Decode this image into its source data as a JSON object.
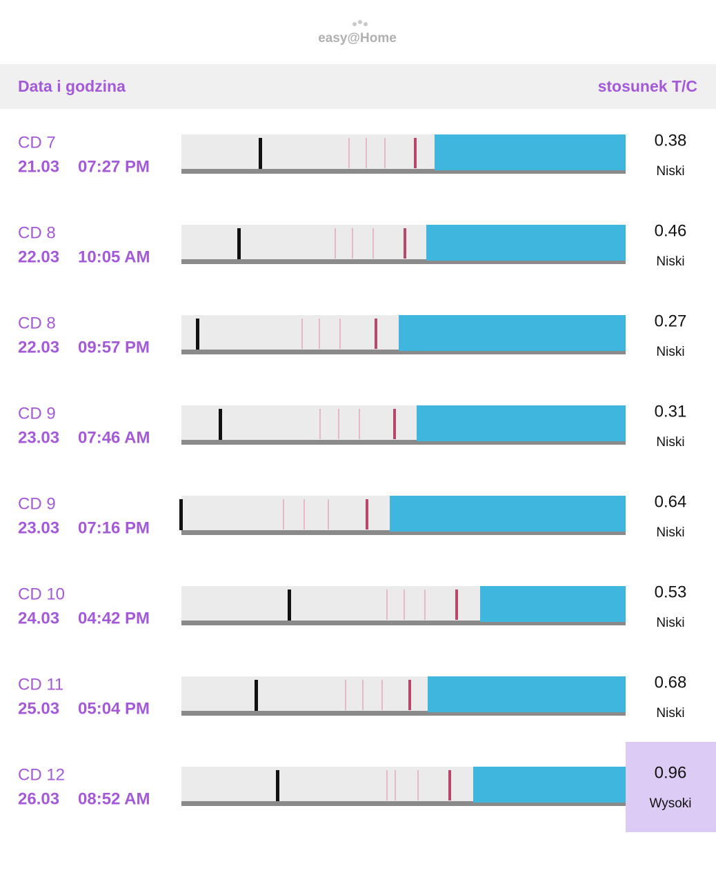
{
  "header": {
    "logo": "easy@Home",
    "col_date": "Data i godzina",
    "col_ratio": "stosunek T/C"
  },
  "rows": [
    {
      "cycle_day": "CD 7",
      "date": "21.03",
      "time": "07:27 PM",
      "ratio": "0.38",
      "level": "Niski"
    },
    {
      "cycle_day": "CD 8",
      "date": "22.03",
      "time": "10:05 AM",
      "ratio": "0.46",
      "level": "Niski"
    },
    {
      "cycle_day": "CD 8",
      "date": "22.03",
      "time": "09:57 PM",
      "ratio": "0.27",
      "level": "Niski"
    },
    {
      "cycle_day": "CD 9",
      "date": "23.03",
      "time": "07:46 AM",
      "ratio": "0.31",
      "level": "Niski"
    },
    {
      "cycle_day": "CD 9",
      "date": "23.03",
      "time": "07:16 PM",
      "ratio": "0.64",
      "level": "Niski"
    },
    {
      "cycle_day": "CD 10",
      "date": "24.03",
      "time": "04:42 PM",
      "ratio": "0.53",
      "level": "Niski"
    },
    {
      "cycle_day": "CD 11",
      "date": "25.03",
      "time": "05:04 PM",
      "ratio": "0.68",
      "level": "Niski"
    },
    {
      "cycle_day": "CD 12",
      "date": "26.03",
      "time": "08:52 AM",
      "ratio": "0.96",
      "level": "Wysoki",
      "selected": true
    }
  ]
}
